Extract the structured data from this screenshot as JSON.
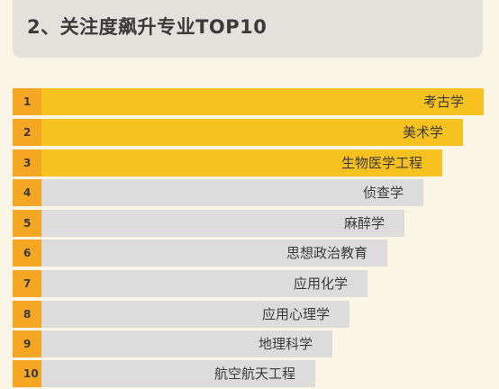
{
  "header": {
    "title": "2、关注度飙升专业TOP10"
  },
  "colors": {
    "rank_cell": "#f5a623",
    "bar_top": "#f7c21f",
    "bar_rest": "#dcdcdc",
    "background": "#fbf5e6",
    "header_bg": "#e4e1dc"
  },
  "ranking": [
    {
      "rank": "1",
      "major": "考古学"
    },
    {
      "rank": "2",
      "major": "美术学"
    },
    {
      "rank": "3",
      "major": "生物医学工程"
    },
    {
      "rank": "4",
      "major": "侦查学"
    },
    {
      "rank": "5",
      "major": "麻醉学"
    },
    {
      "rank": "6",
      "major": "思想政治教育"
    },
    {
      "rank": "7",
      "major": "应用化学"
    },
    {
      "rank": "8",
      "major": "应用心理学"
    },
    {
      "rank": "9",
      "major": "地理科学"
    },
    {
      "rank": "10",
      "major": "航空航天工程"
    }
  ]
}
